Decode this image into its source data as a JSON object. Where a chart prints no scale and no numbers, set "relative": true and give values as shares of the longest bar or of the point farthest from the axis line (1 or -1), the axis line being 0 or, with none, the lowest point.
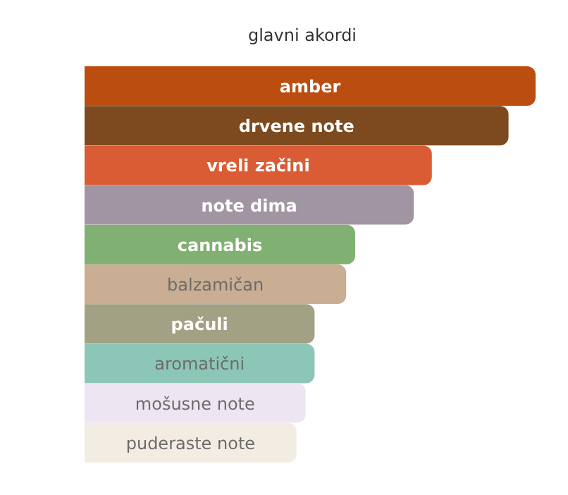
{
  "chart_data": {
    "type": "bar",
    "orientation": "horizontal",
    "relative": true,
    "title": "glavni akordi",
    "categories": [
      "amber",
      "drvene note",
      "vreli začini",
      "note dima",
      "cannabis",
      "balzamičan",
      "pačuli",
      "aromatični",
      "mošusne note",
      "puderaste note"
    ],
    "values": [
      1,
      0.94,
      0.77,
      0.73,
      0.6,
      0.58,
      0.51,
      0.51,
      0.49,
      0.47
    ],
    "colors": [
      "#bc4d10",
      "#7d4a1f",
      "#d95c35",
      "#a295a3",
      "#80b072",
      "#c9ae93",
      "#a2a183",
      "#8cc6b6",
      "#ede5f1",
      "#f3ece2"
    ],
    "grid": false,
    "legend": false
  }
}
